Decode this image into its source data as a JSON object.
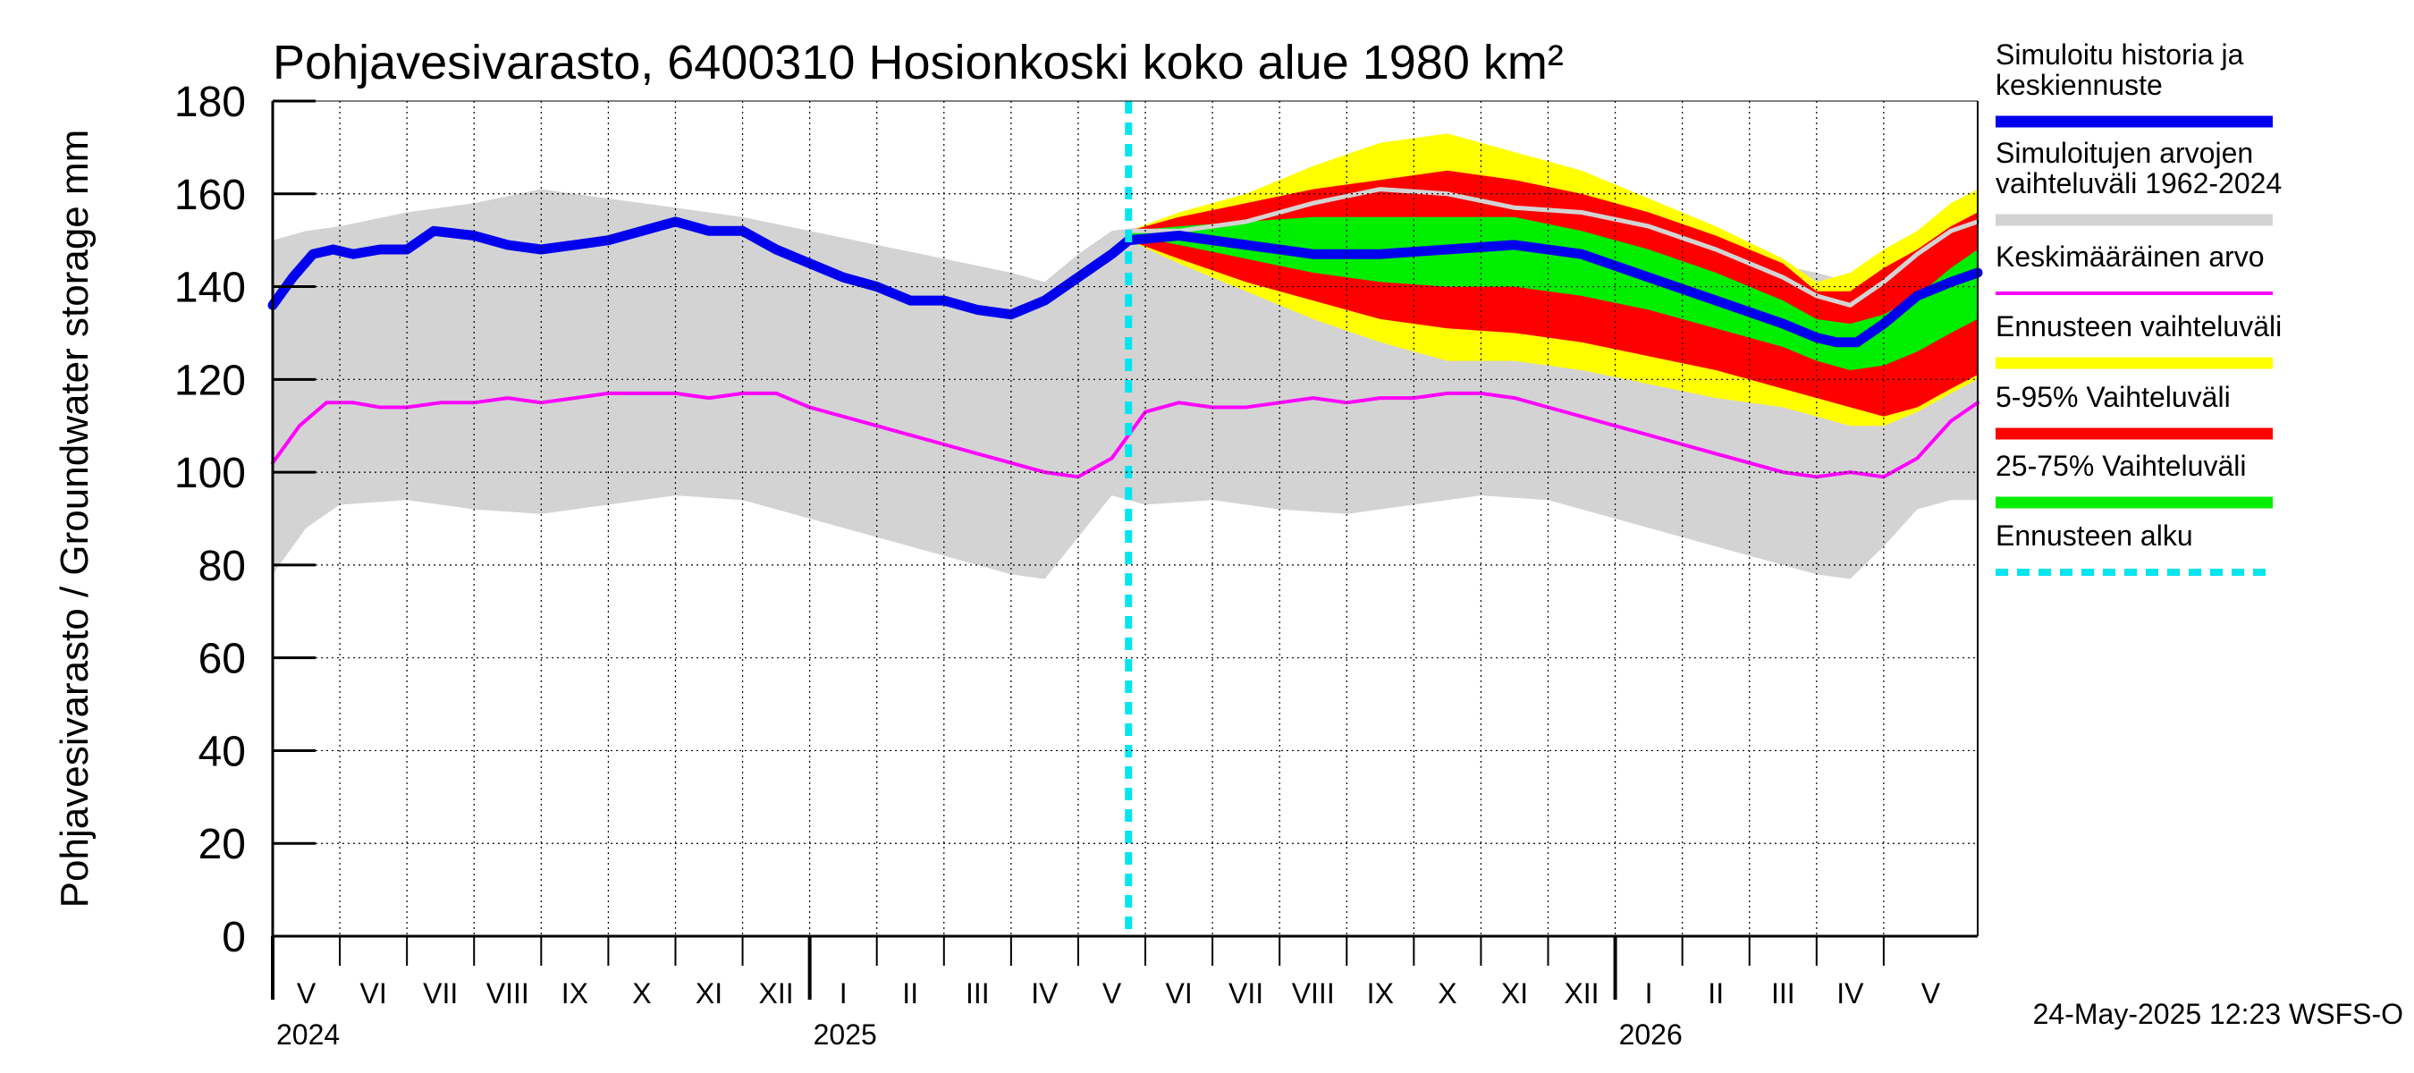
{
  "chart_data": {
    "type": "area",
    "title": "Pohjavesivarasto, 6400310 Hosionkoski koko alue 1980 km²",
    "ylabel": "Pohjavesivarasto / Groundwater storage   mm",
    "ylim": [
      0,
      180
    ],
    "yticks": [
      0,
      20,
      40,
      60,
      80,
      100,
      120,
      140,
      160,
      180
    ],
    "xlim": [
      0,
      25.4
    ],
    "months": [
      {
        "label": "V",
        "start": 0.0
      },
      {
        "label": "VI",
        "start": 1.0
      },
      {
        "label": "VII",
        "start": 2.0
      },
      {
        "label": "VIII",
        "start": 3.0
      },
      {
        "label": "IX",
        "start": 4.0
      },
      {
        "label": "X",
        "start": 5.0
      },
      {
        "label": "XI",
        "start": 6.0
      },
      {
        "label": "XII",
        "start": 7.0
      },
      {
        "label": "I",
        "start": 8.0
      },
      {
        "label": "II",
        "start": 9.0
      },
      {
        "label": "III",
        "start": 10.0
      },
      {
        "label": "IV",
        "start": 11.0
      },
      {
        "label": "V",
        "start": 12.0
      },
      {
        "label": "VI",
        "start": 13.0
      },
      {
        "label": "VII",
        "start": 14.0
      },
      {
        "label": "VIII",
        "start": 15.0
      },
      {
        "label": "IX",
        "start": 16.0
      },
      {
        "label": "X",
        "start": 17.0
      },
      {
        "label": "XI",
        "start": 18.0
      },
      {
        "label": "XII",
        "start": 19.0
      },
      {
        "label": "I",
        "start": 20.0
      },
      {
        "label": "II",
        "start": 21.0
      },
      {
        "label": "III",
        "start": 22.0
      },
      {
        "label": "IV",
        "start": 23.0
      },
      {
        "label": "V",
        "start": 24.0
      }
    ],
    "years": [
      {
        "label": "2024",
        "at": 0.0
      },
      {
        "label": "2025",
        "at": 8.0
      },
      {
        "label": "2026",
        "at": 20.0
      }
    ],
    "forecast_start": 12.75,
    "series": {
      "history_range": {
        "name": "Simuloitujen arvojen vaihteluväli 1962-2024",
        "color": "#d3d3d3",
        "x": [
          0,
          0.5,
          1,
          2,
          3,
          4,
          5,
          6,
          7,
          8,
          9,
          10,
          11,
          11.5,
          12,
          12.5,
          13,
          14,
          15,
          16,
          17,
          18,
          19,
          20,
          21,
          22,
          23,
          23.5,
          24,
          24.5,
          25,
          25.4
        ],
        "upper": [
          150,
          152,
          153,
          156,
          158,
          161,
          159,
          157,
          155,
          152,
          149,
          146,
          143,
          141,
          147,
          152,
          153,
          156,
          158,
          161,
          159,
          157,
          155,
          152,
          149,
          146,
          143,
          141,
          147,
          152,
          156,
          157
        ],
        "lower": [
          78,
          88,
          93,
          94,
          92,
          91,
          93,
          95,
          94,
          90,
          86,
          82,
          78,
          77,
          86,
          95,
          93,
          94,
          92,
          91,
          93,
          95,
          94,
          90,
          86,
          82,
          78,
          77,
          84,
          92,
          94,
          94
        ]
      },
      "forecast_range": {
        "name": "Ennusteen vaihteluväli",
        "color": "#ffff00",
        "x": [
          12.75,
          13.5,
          14.5,
          15.5,
          16.5,
          17.5,
          18.5,
          19.5,
          20.5,
          21.5,
          22.5,
          23.0,
          23.5,
          24.0,
          24.5,
          25.0,
          25.4
        ],
        "upper": [
          152,
          156,
          160,
          166,
          171,
          173,
          169,
          165,
          159,
          153,
          146,
          141,
          143,
          148,
          152,
          158,
          161
        ],
        "lower": [
          150,
          145,
          139,
          133,
          128,
          124,
          124,
          122,
          119,
          116,
          114,
          112,
          110,
          110,
          113,
          117,
          120
        ]
      },
      "p5_95": {
        "name": "5-95% Vaihteluväli",
        "color": "#ff0000",
        "x": [
          12.75,
          13.5,
          14.5,
          15.5,
          16.5,
          17.5,
          18.5,
          19.5,
          20.5,
          21.5,
          22.5,
          23.0,
          23.5,
          24.0,
          24.5,
          25.0,
          25.4
        ],
        "upper": [
          152,
          155,
          158,
          161,
          163,
          165,
          163,
          160,
          156,
          151,
          145,
          139,
          139,
          144,
          148,
          153,
          156
        ],
        "lower": [
          150,
          146,
          141,
          137,
          133,
          131,
          130,
          128,
          125,
          122,
          118,
          116,
          114,
          112,
          114,
          118,
          121
        ]
      },
      "p25_75": {
        "name": "25-75% Vaihteluväli",
        "color": "#00ee00",
        "x": [
          12.75,
          13.5,
          14.5,
          15.5,
          16.5,
          17.5,
          18.5,
          19.5,
          20.5,
          21.5,
          22.5,
          23.0,
          23.5,
          24.0,
          24.5,
          25.0,
          25.4
        ],
        "upper": [
          152,
          153,
          154,
          155,
          155,
          155,
          155,
          152,
          148,
          143,
          137,
          133,
          132,
          134,
          138,
          144,
          148
        ],
        "lower": [
          151,
          149,
          146,
          143,
          141,
          140,
          140,
          138,
          135,
          131,
          127,
          124,
          122,
          123,
          126,
          130,
          133
        ]
      },
      "wet_trace": {
        "name": "",
        "color": "#d3d3d3",
        "x": [
          12.75,
          13.5,
          14.5,
          15.5,
          16.5,
          17.5,
          18.5,
          19.5,
          20.5,
          21.5,
          22.5,
          23.0,
          23.5,
          24.0,
          24.5,
          25.0,
          25.4
        ],
        "y": [
          152,
          152,
          154,
          158,
          161,
          160,
          157,
          156,
          153,
          148,
          142,
          138,
          136,
          141,
          147,
          152,
          154
        ]
      },
      "median": {
        "name": "Simuloitu historia ja keskiennuste",
        "color": "#0000ee",
        "x": [
          0,
          0.3,
          0.6,
          0.9,
          1.2,
          1.6,
          2,
          2.4,
          3,
          3.5,
          4,
          4.5,
          5,
          5.5,
          6,
          6.5,
          7,
          7.5,
          8,
          8.5,
          9,
          9.5,
          10,
          10.5,
          11,
          11.5,
          12,
          12.5,
          12.75,
          13.5,
          14.5,
          15.5,
          16.5,
          17.5,
          18.5,
          19.5,
          20.5,
          21.5,
          22.5,
          23.0,
          23.3,
          23.6,
          24.0,
          24.5,
          25.0,
          25.4
        ],
        "y": [
          136,
          142,
          147,
          148,
          147,
          148,
          148,
          152,
          151,
          149,
          148,
          149,
          150,
          152,
          154,
          152,
          152,
          148,
          145,
          142,
          140,
          137,
          137,
          135,
          134,
          137,
          142,
          147,
          150,
          151,
          149,
          147,
          147,
          148,
          149,
          147,
          142,
          137,
          132,
          129,
          128,
          128,
          132,
          138,
          141,
          143
        ]
      },
      "mean": {
        "name": "Keskimääräinen arvo",
        "color": "#ff00ff",
        "x": [
          0,
          0.4,
          0.8,
          1.2,
          1.6,
          2,
          2.5,
          3,
          3.5,
          4,
          4.5,
          5,
          5.5,
          6,
          6.5,
          7,
          7.5,
          8,
          8.5,
          9,
          9.5,
          10,
          10.5,
          11,
          11.5,
          12,
          12.5,
          13,
          13.5,
          14,
          14.5,
          15,
          15.5,
          16,
          16.5,
          17,
          17.5,
          18,
          18.5,
          19,
          19.5,
          20,
          20.5,
          21,
          21.5,
          22,
          22.5,
          23,
          23.5,
          24,
          24.5,
          25,
          25.4
        ],
        "y": [
          102,
          110,
          115,
          115,
          114,
          114,
          115,
          115,
          116,
          115,
          116,
          117,
          117,
          117,
          116,
          117,
          117,
          114,
          112,
          110,
          108,
          106,
          104,
          102,
          100,
          99,
          103,
          113,
          115,
          114,
          114,
          115,
          116,
          115,
          116,
          116,
          117,
          117,
          116,
          114,
          112,
          110,
          108,
          106,
          104,
          102,
          100,
          99,
          100,
          99,
          103,
          111,
          115
        ]
      }
    },
    "legend": [
      {
        "key": "median",
        "label_lines": [
          "Simuloitu historia ja",
          "keskiennuste"
        ],
        "color": "#0000ee",
        "style": "thick"
      },
      {
        "key": "history_range",
        "label_lines": [
          "Simuloitujen arvojen",
          "vaihteluväli 1962-2024"
        ],
        "color": "#d3d3d3",
        "style": "thick"
      },
      {
        "key": "mean",
        "label_lines": [
          "Keskimääräinen arvo"
        ],
        "color": "#ff00ff",
        "style": "thin"
      },
      {
        "key": "forecast_range",
        "label_lines": [
          "Ennusteen vaihteluväli"
        ],
        "color": "#ffff00",
        "style": "thick"
      },
      {
        "key": "p5_95",
        "label_lines": [
          "5-95% Vaihteluväli"
        ],
        "color": "#ff0000",
        "style": "thick"
      },
      {
        "key": "p25_75",
        "label_lines": [
          "25-75% Vaihteluväli"
        ],
        "color": "#00ee00",
        "style": "thick"
      },
      {
        "key": "forecast_start",
        "label_lines": [
          "Ennusteen alku"
        ],
        "color": "#00e5ee",
        "style": "dashed"
      }
    ],
    "legend_placement": "right",
    "grid": true,
    "footer": "24-May-2025 12:23 WSFS-O"
  }
}
